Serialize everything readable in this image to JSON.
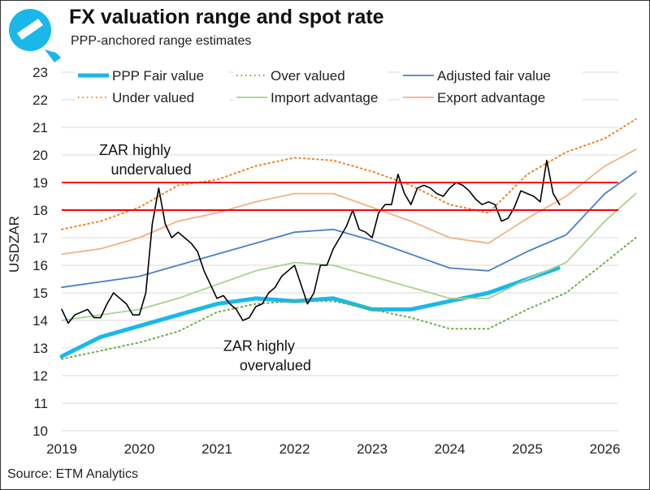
{
  "header": {
    "title": "FX valuation range and spot rate",
    "subtitle": "PPP-anchored range estimates",
    "source": "Source: ETM Analytics"
  },
  "logo": {
    "name": "etm-logo",
    "color": "#1ab8ea"
  },
  "chart_data": {
    "type": "line",
    "title": "FX valuation range and spot rate",
    "subtitle": "PPP-anchored range estimates",
    "ylabel": "USDZAR",
    "xlabel": "",
    "xlim": [
      2019,
      2026.5
    ],
    "ylim": [
      10,
      23
    ],
    "xticks": [
      "2019",
      "2020",
      "2021",
      "2022",
      "2023",
      "2024",
      "2025",
      "2026"
    ],
    "yticks": [
      "10",
      "11",
      "12",
      "13",
      "14",
      "15",
      "16",
      "17",
      "18",
      "19",
      "20",
      "21",
      "22",
      "23"
    ],
    "grid": "horizontal",
    "legend": "top",
    "reference_lines": [
      {
        "y": 19,
        "color": "#ff0000"
      },
      {
        "y": 18,
        "color": "#ff0000"
      }
    ],
    "annotations": [
      {
        "text": "ZAR highly undervalued",
        "lines": [
          "ZAR highly",
          "undervalued"
        ],
        "x": 2020.1,
        "y": 20.0
      },
      {
        "text": "ZAR highly overvalued",
        "lines": [
          "ZAR highly",
          "overvalued"
        ],
        "x": 2021.7,
        "y": 12.9
      }
    ],
    "series": [
      {
        "name": "PPP Fair value",
        "color": "#1ab8ea",
        "style": "thick",
        "x": [
          2019,
          2019.5,
          2020,
          2020.5,
          2021,
          2021.5,
          2022,
          2022.5,
          2023,
          2023.5,
          2024,
          2024.5,
          2025,
          2025.4
        ],
        "y": [
          12.7,
          13.4,
          13.8,
          14.2,
          14.6,
          14.8,
          14.7,
          14.8,
          14.4,
          14.4,
          14.7,
          15.0,
          15.5,
          15.9
        ]
      },
      {
        "name": "Over valued",
        "color": "#70ad47",
        "style": "dotted",
        "x": [
          2019,
          2019.5,
          2020,
          2020.5,
          2021,
          2021.5,
          2022,
          2022.5,
          2023,
          2023.5,
          2024,
          2024.5,
          2025,
          2025.5,
          2026,
          2026.4
        ],
        "y": [
          12.6,
          12.9,
          13.2,
          13.6,
          14.3,
          14.6,
          14.7,
          14.7,
          14.4,
          14.1,
          13.7,
          13.7,
          14.4,
          15.0,
          16.1,
          17.0
        ]
      },
      {
        "name": "Adjusted fair value",
        "color": "#4a7fcc",
        "style": "solid",
        "x": [
          2019,
          2019.5,
          2020,
          2020.5,
          2021,
          2021.5,
          2022,
          2022.5,
          2023,
          2023.5,
          2024,
          2024.5,
          2025,
          2025.5,
          2026,
          2026.4
        ],
        "y": [
          15.2,
          15.4,
          15.6,
          16.0,
          16.4,
          16.8,
          17.2,
          17.3,
          16.9,
          16.4,
          15.9,
          15.8,
          16.5,
          17.1,
          18.6,
          19.4
        ]
      },
      {
        "name": "Under valued",
        "color": "#f58220",
        "style": "dotted",
        "x": [
          2019,
          2019.5,
          2020,
          2020.5,
          2021,
          2021.5,
          2022,
          2022.5,
          2023,
          2023.5,
          2024,
          2024.5,
          2025,
          2025.5,
          2026,
          2026.4
        ],
        "y": [
          17.3,
          17.6,
          18.1,
          18.9,
          19.1,
          19.6,
          19.9,
          19.8,
          19.4,
          18.9,
          18.2,
          17.9,
          19.3,
          20.1,
          20.6,
          21.3
        ]
      },
      {
        "name": "Import advantage",
        "color": "#a9d18e",
        "style": "solid",
        "x": [
          2019,
          2019.5,
          2020,
          2020.5,
          2021,
          2021.5,
          2022,
          2022.5,
          2023,
          2023.5,
          2024,
          2024.5,
          2025,
          2025.5,
          2026,
          2026.4
        ],
        "y": [
          14.0,
          14.2,
          14.4,
          14.8,
          15.3,
          15.8,
          16.1,
          16.0,
          15.6,
          15.2,
          14.8,
          14.8,
          15.5,
          16.1,
          17.6,
          18.6
        ]
      },
      {
        "name": "Export advantage",
        "color": "#f4b183",
        "style": "solid",
        "x": [
          2019,
          2019.5,
          2020,
          2020.5,
          2021,
          2021.5,
          2022,
          2022.5,
          2023,
          2023.5,
          2024,
          2024.5,
          2025,
          2025.5,
          2026,
          2026.4
        ],
        "y": [
          16.4,
          16.6,
          17.0,
          17.6,
          17.9,
          18.3,
          18.6,
          18.6,
          18.1,
          17.6,
          17.0,
          16.8,
          17.7,
          18.5,
          19.6,
          20.2
        ]
      },
      {
        "name": "",
        "color": "#000000",
        "style": "spot",
        "x0": 2019,
        "step_months": 1,
        "y": [
          14.4,
          13.9,
          14.2,
          14.3,
          14.4,
          14.1,
          14.1,
          14.6,
          15.0,
          14.8,
          14.6,
          14.2,
          14.2,
          15.0,
          17.5,
          18.8,
          17.5,
          17.0,
          17.2,
          17.0,
          16.8,
          16.5,
          15.8,
          15.3,
          14.8,
          14.9,
          14.6,
          14.4,
          14.0,
          14.1,
          14.5,
          14.6,
          15.0,
          15.2,
          15.6,
          15.8,
          16.0,
          15.3,
          14.6,
          15.0,
          16.0,
          16.0,
          16.6,
          17.0,
          17.4,
          18.0,
          17.3,
          17.2,
          17.0,
          17.9,
          18.2,
          18.2,
          19.3,
          18.6,
          18.2,
          18.8,
          18.9,
          18.8,
          18.6,
          18.5,
          18.8,
          19.0,
          18.9,
          18.7,
          18.4,
          18.2,
          18.3,
          18.2,
          17.6,
          17.7,
          18.1,
          18.7,
          18.6,
          18.5,
          18.3,
          19.8,
          18.6,
          18.2
        ]
      }
    ]
  }
}
